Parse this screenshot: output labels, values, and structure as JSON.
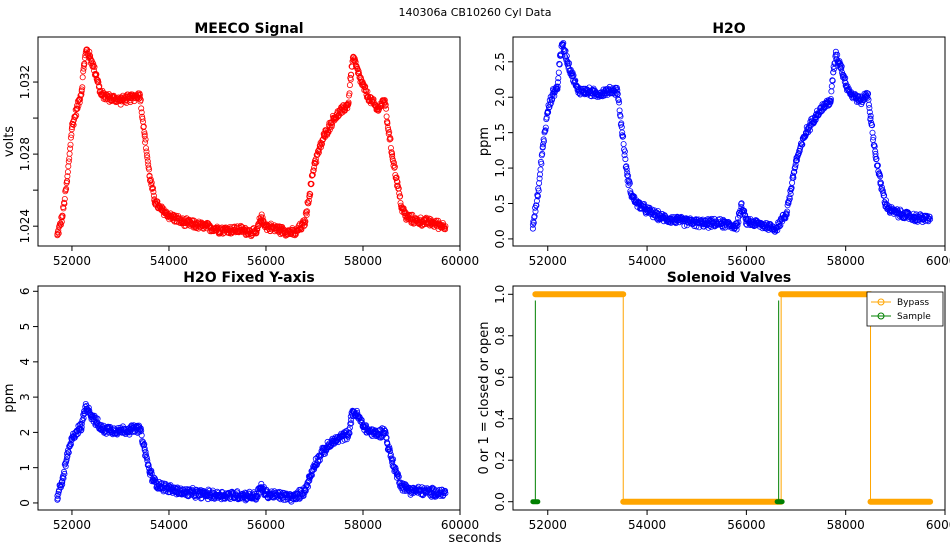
{
  "suptitle": "140306a    CB10260   Cyl Data",
  "xlabel": "seconds",
  "chart_data": [
    {
      "type": "scatter",
      "title": "MEECO Signal",
      "xlabel": "",
      "ylabel": "volts",
      "xlim": [
        51300,
        60000
      ],
      "ylim": [
        1.0229,
        1.0345
      ],
      "xticks": [
        52000,
        54000,
        56000,
        58000,
        60000
      ],
      "yticks": [
        1.024,
        1.028,
        1.032
      ],
      "yticks_minor": [
        1.026,
        1.03
      ],
      "color": "#ff0000",
      "series": [
        {
          "name": "MEECO Signal",
          "x": [
            51700,
            51800,
            51900,
            52000,
            52100,
            52200,
            52250,
            52300,
            52400,
            52500,
            52600,
            52800,
            53000,
            53200,
            53400,
            53500,
            53600,
            53700,
            53800,
            54000,
            54300,
            54700,
            55100,
            55500,
            55800,
            55900,
            56000,
            56300,
            56600,
            56800,
            56900,
            57000,
            57200,
            57400,
            57600,
            57700,
            57750,
            57800,
            57900,
            58000,
            58100,
            58300,
            58450,
            58500,
            58600,
            58700,
            58800,
            58900,
            59100,
            59400,
            59700
          ],
          "y": [
            1.0235,
            1.0245,
            1.0265,
            1.0295,
            1.0305,
            1.0315,
            1.033,
            1.0338,
            1.0332,
            1.0324,
            1.0313,
            1.0311,
            1.031,
            1.0311,
            1.0313,
            1.029,
            1.0268,
            1.0255,
            1.025,
            1.0246,
            1.0242,
            1.024,
            1.0238,
            1.0238,
            1.0236,
            1.0245,
            1.024,
            1.0238,
            1.0236,
            1.0242,
            1.0258,
            1.0275,
            1.029,
            1.03,
            1.0305,
            1.0308,
            1.0324,
            1.0334,
            1.0325,
            1.0318,
            1.0312,
            1.0305,
            1.031,
            1.0298,
            1.028,
            1.0265,
            1.025,
            1.0245,
            1.0243,
            1.0242,
            1.024
          ]
        }
      ]
    },
    {
      "type": "scatter",
      "title": "H2O",
      "xlabel": "",
      "ylabel": "ppm",
      "xlim": [
        51300,
        60000
      ],
      "ylim": [
        -0.1,
        2.85
      ],
      "xticks": [
        52000,
        54000,
        56000,
        58000,
        60000
      ],
      "yticks": [
        0.0,
        0.5,
        1.0,
        1.5,
        2.0,
        2.5
      ],
      "color": "#0000ff",
      "series": [
        {
          "name": "H2O",
          "x": [
            51700,
            51800,
            51900,
            52000,
            52100,
            52200,
            52250,
            52300,
            52400,
            52500,
            52600,
            52800,
            53000,
            53200,
            53400,
            53500,
            53600,
            53700,
            53800,
            54000,
            54300,
            54700,
            55100,
            55500,
            55800,
            55900,
            56000,
            56300,
            56600,
            56800,
            56900,
            57000,
            57200,
            57400,
            57600,
            57700,
            57750,
            57800,
            57900,
            58000,
            58100,
            58300,
            58450,
            58500,
            58600,
            58700,
            58800,
            58900,
            59100,
            59400,
            59700
          ],
          "y": [
            0.2,
            0.6,
            1.3,
            1.8,
            2.05,
            2.15,
            2.6,
            2.75,
            2.5,
            2.3,
            2.1,
            2.08,
            2.05,
            2.08,
            2.1,
            1.5,
            0.9,
            0.6,
            0.5,
            0.4,
            0.3,
            0.25,
            0.22,
            0.22,
            0.18,
            0.45,
            0.25,
            0.2,
            0.15,
            0.35,
            0.7,
            1.1,
            1.5,
            1.75,
            1.9,
            1.95,
            2.35,
            2.6,
            2.45,
            2.2,
            2.05,
            1.95,
            2.05,
            1.7,
            1.2,
            0.8,
            0.5,
            0.4,
            0.35,
            0.3,
            0.28
          ]
        }
      ]
    },
    {
      "type": "scatter",
      "title": "H2O Fixed Y-axis",
      "xlabel": "",
      "ylabel": "ppm",
      "xlim": [
        51300,
        60000
      ],
      "ylim": [
        -0.2,
        6.15
      ],
      "xticks": [
        52000,
        54000,
        56000,
        58000,
        60000
      ],
      "yticks": [
        0,
        1,
        2,
        3,
        4,
        5,
        6
      ],
      "color": "#0000ff",
      "series": [
        {
          "name": "H2O",
          "x": [
            51700,
            51800,
            51900,
            52000,
            52100,
            52200,
            52250,
            52300,
            52400,
            52500,
            52600,
            52800,
            53000,
            53200,
            53400,
            53500,
            53600,
            53700,
            53800,
            54000,
            54300,
            54700,
            55100,
            55500,
            55800,
            55900,
            56000,
            56300,
            56600,
            56800,
            56900,
            57000,
            57200,
            57400,
            57600,
            57700,
            57750,
            57800,
            57900,
            58000,
            58100,
            58300,
            58450,
            58500,
            58600,
            58700,
            58800,
            58900,
            59100,
            59400,
            59700
          ],
          "y": [
            0.2,
            0.6,
            1.3,
            1.8,
            2.05,
            2.15,
            2.6,
            2.75,
            2.5,
            2.3,
            2.1,
            2.08,
            2.05,
            2.08,
            2.1,
            1.5,
            0.9,
            0.6,
            0.5,
            0.4,
            0.3,
            0.25,
            0.22,
            0.22,
            0.18,
            0.45,
            0.25,
            0.2,
            0.15,
            0.35,
            0.7,
            1.1,
            1.5,
            1.75,
            1.9,
            1.95,
            2.35,
            2.6,
            2.45,
            2.2,
            2.05,
            1.95,
            2.05,
            1.7,
            1.2,
            0.8,
            0.5,
            0.4,
            0.35,
            0.3,
            0.28
          ]
        }
      ]
    },
    {
      "type": "line",
      "title": "Solenoid Valves",
      "xlabel": "",
      "ylabel": "0 or 1 = closed or open",
      "xlim": [
        51300,
        60000
      ],
      "ylim": [
        -0.04,
        1.04
      ],
      "xticks": [
        52000,
        54000,
        56000,
        58000,
        60000
      ],
      "yticks": [
        0.0,
        0.2,
        0.4,
        0.6,
        0.8,
        1.0
      ],
      "legend": "top-right",
      "series": [
        {
          "name": "Bypass",
          "color": "#ffa500",
          "segments": [
            [
              51750,
              53520,
              1
            ],
            [
              53520,
              56700,
              0
            ],
            [
              56700,
              58500,
              1
            ],
            [
              58500,
              59700,
              0
            ]
          ]
        },
        {
          "name": "Sample",
          "color": "#008000",
          "pulses": [
            51750,
            56650
          ],
          "segments": [
            [
              51700,
              51800,
              0
            ],
            [
              56620,
              56720,
              0
            ]
          ]
        }
      ]
    }
  ]
}
